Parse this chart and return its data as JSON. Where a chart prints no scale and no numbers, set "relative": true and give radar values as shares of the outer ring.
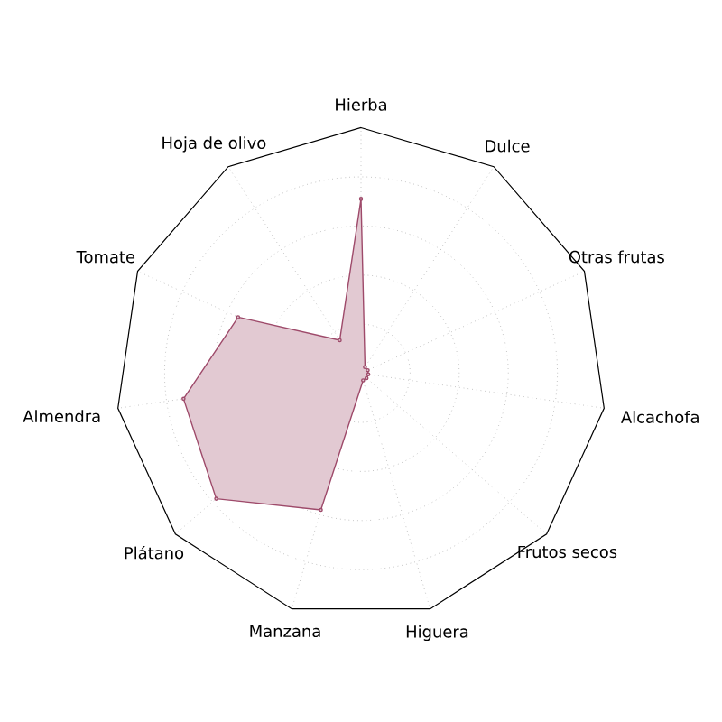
{
  "chart_data": {
    "type": "radar",
    "relative": true,
    "grid": true,
    "categories": [
      "Hierba",
      "Dulce",
      "Otras frutas",
      "Alcachofa",
      "Frutos secos",
      "Higuera",
      "Manzana",
      "Plátano",
      "Almendra",
      "Tomate",
      "Hoja de olivo"
    ],
    "series": [
      {
        "color": "#9e4a6a",
        "values": [
          0.71,
          0.03,
          0.03,
          0.03,
          0.03,
          0.03,
          0.58,
          0.78,
          0.73,
          0.55,
          0.16
        ]
      }
    ]
  }
}
